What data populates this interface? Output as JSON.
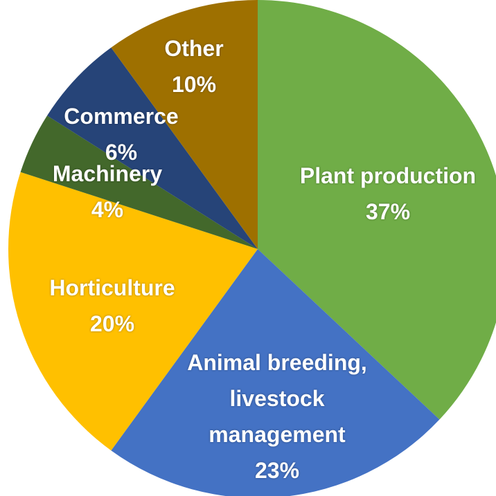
{
  "chart_data": {
    "type": "pie",
    "categories": [
      "Plant production",
      "Animal breeding, livestock management",
      "Horticulture",
      "Machinery",
      "Commerce",
      "Other"
    ],
    "values": [
      37,
      23,
      20,
      4,
      6,
      10
    ],
    "value_labels": [
      "37%",
      "23%",
      "20%",
      "4%",
      "6%",
      "10%"
    ],
    "colors": [
      "#70ad47",
      "#4472c4",
      "#ffc000",
      "#43682b",
      "#264478",
      "#9e7000"
    ]
  }
}
